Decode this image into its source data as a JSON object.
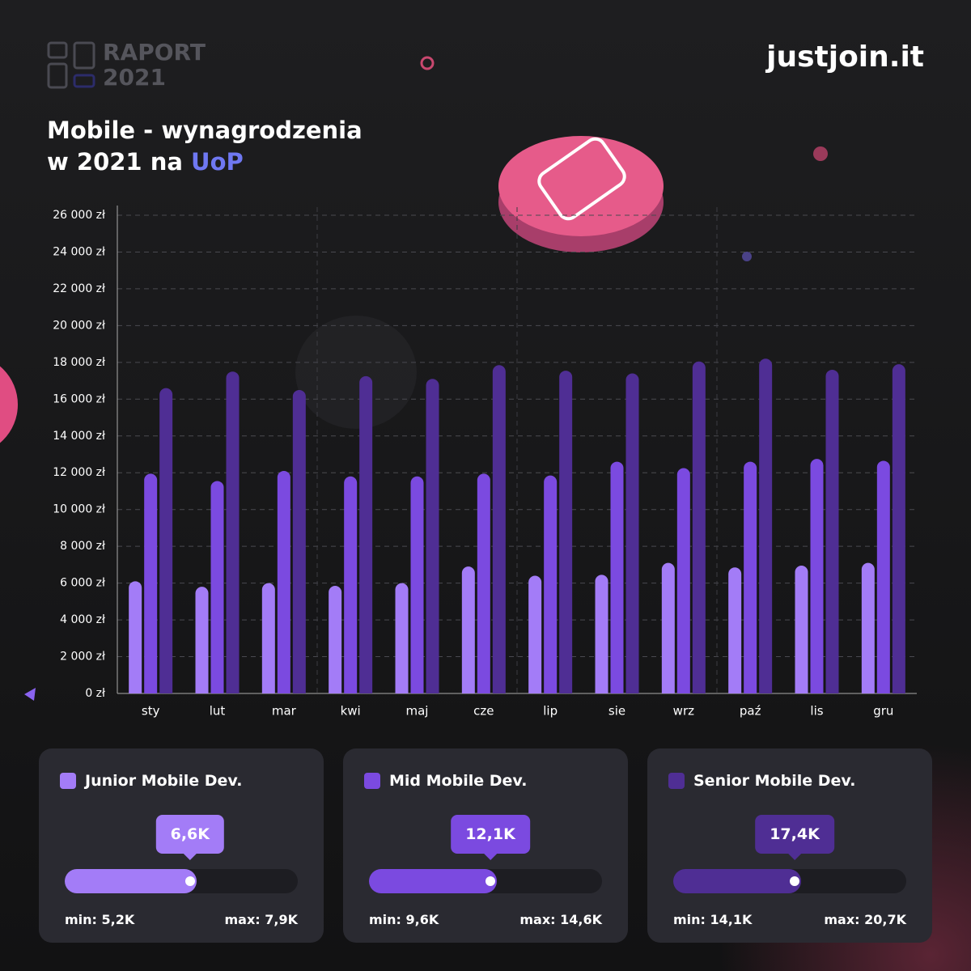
{
  "header": {
    "report_line1": "RAPORT",
    "report_line2": "2021",
    "brand": "justjoin.it"
  },
  "chart_data": {
    "type": "bar",
    "title_line1": "Mobile - wynagrodzenia",
    "title_line2": "w 2021 na",
    "title_highlight": "UoP",
    "categories": [
      "sty",
      "lut",
      "mar",
      "kwi",
      "maj",
      "cze",
      "lip",
      "sie",
      "wrz",
      "paź",
      "lis",
      "gru"
    ],
    "series": [
      {
        "name": "Junior Mobile Dev.",
        "color": "#a37cf7",
        "values": [
          6100,
          5800,
          6000,
          5850,
          6000,
          6900,
          6400,
          6450,
          7100,
          6850,
          6950,
          7100
        ]
      },
      {
        "name": "Mid Mobile Dev.",
        "color": "#7b4ae0",
        "values": [
          11950,
          11550,
          12100,
          11800,
          11800,
          11950,
          11850,
          12600,
          12250,
          12600,
          12750,
          12650
        ]
      },
      {
        "name": "Senior Mobile Dev.",
        "color": "#4f2e94",
        "values": [
          16600,
          17500,
          16500,
          17250,
          17100,
          17850,
          17550,
          17400,
          18050,
          18200,
          17600,
          17900
        ]
      }
    ],
    "ylim": [
      0,
      26000
    ],
    "yticks": [
      {
        "value": 0,
        "label": "0 zł"
      },
      {
        "value": 2000,
        "label": "2 000 zł"
      },
      {
        "value": 4000,
        "label": "4 000 zł"
      },
      {
        "value": 6000,
        "label": "6 000 zł"
      },
      {
        "value": 8000,
        "label": "8 000 zł"
      },
      {
        "value": 10000,
        "label": "10 000 zł"
      },
      {
        "value": 12000,
        "label": "12 000 zł"
      },
      {
        "value": 14000,
        "label": "14 000 zł"
      },
      {
        "value": 16000,
        "label": "16 000 zł"
      },
      {
        "value": 18000,
        "label": "18 000 zł"
      },
      {
        "value": 20000,
        "label": "20 000 zł"
      },
      {
        "value": 22000,
        "label": "22 000 zł"
      },
      {
        "value": 24000,
        "label": "24 000 zł"
      },
      {
        "value": 26000,
        "label": "26 000 zł"
      }
    ],
    "grid": true
  },
  "cards": [
    {
      "name": "Junior Mobile Dev.",
      "color": "#a37cf7",
      "value": 6.6,
      "value_label": "6,6K",
      "min": 5.2,
      "min_label": "min: 5,2K",
      "max": 7.9,
      "max_label": "max: 7,9K"
    },
    {
      "name": "Mid Mobile Dev.",
      "color": "#7b4ae0",
      "value": 12.1,
      "value_label": "12,1K",
      "min": 9.6,
      "min_label": "min: 9,6K",
      "max": 14.6,
      "max_label": "max: 14,6K"
    },
    {
      "name": "Senior Mobile Dev.",
      "color": "#4f2e94",
      "value": 17.4,
      "value_label": "17,4K",
      "min": 14.1,
      "min_label": "min: 14,1K",
      "max": 20.7,
      "max_label": "max: 20,7K"
    }
  ]
}
